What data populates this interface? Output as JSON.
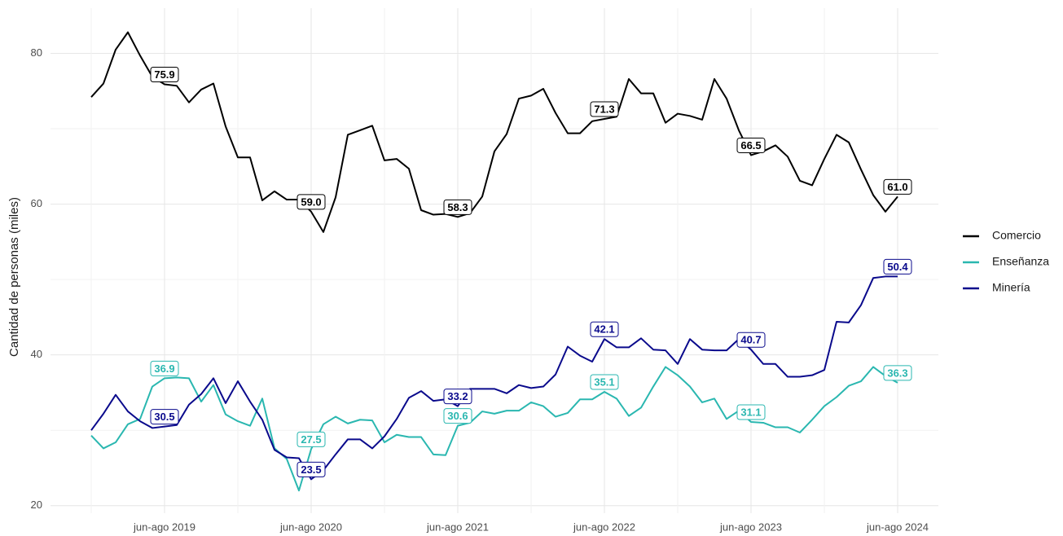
{
  "chart_data": {
    "type": "line",
    "y_label": "Cantidad de personas (miles)",
    "categories": [
      null,
      null,
      null,
      null,
      null,
      null,
      "jun-ago 2019",
      null,
      null,
      null,
      null,
      null,
      null,
      null,
      null,
      null,
      null,
      null,
      "jun-ago 2020",
      null,
      null,
      null,
      null,
      null,
      null,
      null,
      null,
      null,
      null,
      null,
      "jun-ago 2021",
      null,
      null,
      null,
      null,
      null,
      null,
      null,
      null,
      null,
      null,
      null,
      "jun-ago 2022",
      null,
      null,
      null,
      null,
      null,
      null,
      null,
      null,
      null,
      null,
      null,
      "jun-ago 2023",
      null,
      null,
      null,
      null,
      null,
      null,
      null,
      null,
      null,
      null,
      null,
      "jun-ago 2024"
    ],
    "ylim": [
      19,
      86
    ],
    "yticks": [
      20,
      40,
      60,
      80
    ],
    "grid": true,
    "legend": "right",
    "series": [
      {
        "name": "Comercio",
        "color": "#000000",
        "values": [
          74.2,
          76.0,
          80.5,
          82.8,
          79.7,
          76.9,
          75.9,
          75.7,
          73.5,
          75.2,
          76.0,
          70.3,
          66.2,
          66.2,
          60.5,
          61.7,
          60.6,
          60.6,
          59.0,
          56.3,
          60.9,
          69.2,
          69.8,
          70.4,
          65.8,
          66.0,
          64.7,
          59.2,
          58.6,
          58.7,
          58.3,
          58.8,
          61.0,
          67.0,
          69.3,
          74.0,
          74.4,
          75.3,
          72.1,
          69.4,
          69.4,
          71.0,
          71.3,
          71.6,
          76.6,
          74.7,
          74.7,
          70.8,
          72.0,
          71.7,
          71.2,
          76.6,
          74.0,
          69.8,
          66.5,
          67.0,
          67.8,
          66.3,
          63.1,
          62.5,
          66.0,
          69.2,
          68.2,
          64.6,
          61.2,
          59.0,
          61.0
        ],
        "value_labels": [
          null,
          null,
          null,
          null,
          null,
          null,
          "75.9",
          null,
          null,
          null,
          null,
          null,
          null,
          null,
          null,
          null,
          null,
          null,
          "59.0",
          null,
          null,
          null,
          null,
          null,
          null,
          null,
          null,
          null,
          null,
          null,
          "58.3",
          null,
          null,
          null,
          null,
          null,
          null,
          null,
          null,
          null,
          null,
          null,
          "71.3",
          null,
          null,
          null,
          null,
          null,
          null,
          null,
          null,
          null,
          null,
          null,
          "66.5",
          null,
          null,
          null,
          null,
          null,
          null,
          null,
          null,
          null,
          null,
          null,
          "61.0"
        ]
      },
      {
        "name": "Enseñanza",
        "color": "#2ab7b0",
        "values": [
          29.3,
          27.6,
          28.4,
          30.8,
          31.5,
          35.8,
          36.9,
          37.0,
          36.9,
          33.8,
          36.0,
          32.1,
          31.2,
          30.6,
          34.2,
          27.6,
          26.2,
          22.0,
          27.5,
          30.8,
          31.8,
          30.9,
          31.4,
          31.3,
          28.4,
          29.4,
          29.1,
          29.1,
          26.8,
          26.7,
          30.6,
          31.0,
          32.5,
          32.2,
          32.6,
          32.6,
          33.7,
          33.2,
          31.8,
          32.3,
          34.1,
          34.1,
          35.1,
          34.2,
          31.9,
          33.0,
          35.8,
          38.4,
          37.3,
          35.8,
          33.7,
          34.2,
          31.5,
          32.6,
          31.1,
          31.0,
          30.4,
          30.4,
          29.7,
          31.4,
          33.2,
          34.4,
          35.9,
          36.5,
          38.4,
          37.2,
          36.3
        ],
        "value_labels": [
          null,
          null,
          null,
          null,
          null,
          null,
          "36.9",
          null,
          null,
          null,
          null,
          null,
          null,
          null,
          null,
          null,
          null,
          null,
          "27.5",
          null,
          null,
          null,
          null,
          null,
          null,
          null,
          null,
          null,
          null,
          null,
          "30.6",
          null,
          null,
          null,
          null,
          null,
          null,
          null,
          null,
          null,
          null,
          null,
          "35.1",
          null,
          null,
          null,
          null,
          null,
          null,
          null,
          null,
          null,
          null,
          null,
          "31.1",
          null,
          null,
          null,
          null,
          null,
          null,
          null,
          null,
          null,
          null,
          null,
          "36.3"
        ]
      },
      {
        "name": "Minería",
        "color": "#0a0a8c",
        "values": [
          30.0,
          32.2,
          34.7,
          32.5,
          31.2,
          30.3,
          30.5,
          30.7,
          33.4,
          34.8,
          36.9,
          33.6,
          36.5,
          33.8,
          31.4,
          27.4,
          26.4,
          26.3,
          23.5,
          24.7,
          26.8,
          28.8,
          28.8,
          27.6,
          29.2,
          31.5,
          34.3,
          35.2,
          33.9,
          34.1,
          33.2,
          35.5,
          35.5,
          35.5,
          34.9,
          36.0,
          35.6,
          35.8,
          37.4,
          41.1,
          39.9,
          39.1,
          42.1,
          41.0,
          41.0,
          42.2,
          40.7,
          40.6,
          38.8,
          42.1,
          40.7,
          40.6,
          40.6,
          42.1,
          40.7,
          38.8,
          38.8,
          37.1,
          37.1,
          37.3,
          38.0,
          44.4,
          44.3,
          46.6,
          50.2,
          50.4,
          50.4
        ],
        "value_labels": [
          null,
          null,
          null,
          null,
          null,
          null,
          "30.5",
          null,
          null,
          null,
          null,
          null,
          null,
          null,
          null,
          null,
          null,
          null,
          "23.5",
          null,
          null,
          null,
          null,
          null,
          null,
          null,
          null,
          null,
          null,
          null,
          "33.2",
          null,
          null,
          null,
          null,
          null,
          null,
          null,
          null,
          null,
          null,
          null,
          "42.1",
          null,
          null,
          null,
          null,
          null,
          null,
          null,
          null,
          null,
          null,
          null,
          "40.7",
          null,
          null,
          null,
          null,
          null,
          null,
          null,
          null,
          null,
          null,
          null,
          "50.4"
        ]
      }
    ]
  }
}
